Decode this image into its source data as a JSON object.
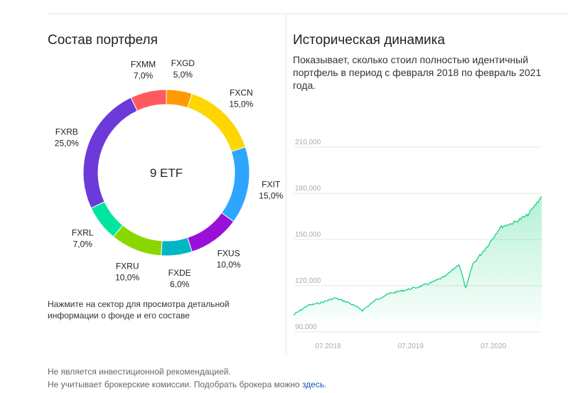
{
  "portfolio": {
    "title": "Состав портфеля",
    "center_label": "9 ETF",
    "hint": "Нажмите на сектор для просмотра детальной информации о фонде и его составе"
  },
  "history": {
    "title": "Историческая динамика",
    "description": "Показывает, сколько стоил полностью идентичный портфель в период с февраля 2018 по февраль 2021 года."
  },
  "footer": {
    "line1": "Не является инвестиционной рекомендацией.",
    "line2_prefix": "Не учитывает брокерские комиссии. Подобрать брокера можно ",
    "line2_link": "здесь",
    "line2_suffix": "."
  },
  "chart_data": [
    {
      "type": "pie",
      "donut": true,
      "categories": [
        "FXGD",
        "FXCN",
        "FXIT",
        "FXUS",
        "FXDE",
        "FXRU",
        "FXRL",
        "FXRB",
        "FXMM"
      ],
      "values": [
        5.0,
        15.0,
        15.0,
        10.0,
        6.0,
        10.0,
        7.0,
        25.0,
        7.0
      ],
      "value_labels": [
        "5,0%",
        "15,0%",
        "15,0%",
        "10,0%",
        "6,0%",
        "10,0%",
        "7,0%",
        "25,0%",
        "7,0%"
      ],
      "colors": [
        "#ff9a00",
        "#ffd600",
        "#2ea6ff",
        "#9b10d8",
        "#00b5c4",
        "#8ad700",
        "#00e6a0",
        "#6b3ad9",
        "#ff5a5f"
      ],
      "center_label": "9 ETF"
    },
    {
      "type": "area",
      "x_ticks": [
        "07.2018",
        "07.2019",
        "07.2020"
      ],
      "y_ticks": [
        "90,000",
        "120,000",
        "150,000",
        "180,000",
        "210,000"
      ],
      "y_tick_values": [
        90000,
        120000,
        150000,
        180000,
        210000
      ],
      "ylim": [
        90000,
        210000
      ],
      "xlim": [
        "2018-02",
        "2021-02"
      ],
      "grid": true,
      "line_color": "#19d27f",
      "x": [
        "2018-02",
        "2018-04",
        "2018-06",
        "2018-08",
        "2018-10",
        "2018-12",
        "2019-02",
        "2019-04",
        "2019-06",
        "2019-08",
        "2019-10",
        "2019-12",
        "2020-02",
        "2020-03",
        "2020-04",
        "2020-06",
        "2020-08",
        "2020-10",
        "2020-12",
        "2021-02"
      ],
      "y": [
        101000,
        107000,
        109000,
        112000,
        109000,
        104000,
        111000,
        115000,
        117000,
        119000,
        122000,
        126000,
        134000,
        118000,
        134000,
        145000,
        158000,
        161000,
        166000,
        178000
      ]
    }
  ]
}
